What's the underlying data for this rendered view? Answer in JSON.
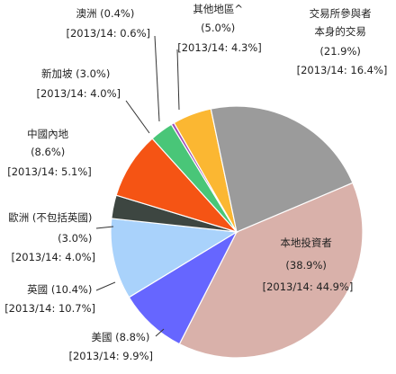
{
  "chart_data": {
    "type": "pie",
    "title": "",
    "series": [
      {
        "name": "本地投資者",
        "value": 38.9,
        "prev_label": "[2013/14: 44.9%]",
        "value_label": "(38.9%)",
        "color": "#d9b1aa"
      },
      {
        "name": "美國",
        "value": 8.8,
        "prev_label": "[2013/14: 9.9%]",
        "value_label": "(8.8%)",
        "color": "#6666ff"
      },
      {
        "name": "英國",
        "value": 10.4,
        "prev_label": "[2013/14: 10.7%]",
        "value_label": "(10.4%)",
        "color": "#a9d2fb"
      },
      {
        "name": "歐洲 (不包括英國)",
        "value": 3.0,
        "prev_label": "[2013/14: 4.0%]",
        "value_label": "(3.0%)",
        "color": "#3d4641"
      },
      {
        "name": "中國內地",
        "value": 8.6,
        "prev_label": "[2013/14: 5.1%]",
        "value_label": "(8.6%)",
        "color": "#f55414"
      },
      {
        "name": "新加坡",
        "value": 3.0,
        "prev_label": "[2013/14: 4.0%]",
        "value_label": "(3.0%)",
        "color": "#49c678"
      },
      {
        "name": "澳洲",
        "value": 0.4,
        "prev_label": "[2013/14: 0.6%]",
        "value_label": "(0.4%)",
        "color": "#a050b8"
      },
      {
        "name": "其他地區^",
        "value": 5.0,
        "prev_label": "[2013/14: 4.3%]",
        "value_label": "(5.0%)",
        "color": "#fbb732"
      },
      {
        "name": "交易所參與者本身的交易",
        "value": 21.9,
        "prev_label": "[2013/14: 16.4%]",
        "value_label": "(21.9%)",
        "color": "#9b9b9b"
      }
    ],
    "labels": {
      "local": {
        "line1": "本地投資者",
        "line2": "(38.9%)",
        "line3": "[2013/14: 44.9%]"
      },
      "us": {
        "line1": "美國 (8.8%)",
        "line2": "[2013/14: 9.9%]"
      },
      "uk": {
        "line1": "英國 (10.4%)",
        "line2": "[2013/14: 10.7%]"
      },
      "europe": {
        "line1": "歐洲 (不包括英國)",
        "line2": "(3.0%)",
        "line3": "[2013/14: 4.0%]"
      },
      "mainland": {
        "line1": "中國內地",
        "line2": "(8.6%)",
        "line3": "[2013/14: 5.1%]"
      },
      "singapore": {
        "line1": "新加坡 (3.0%)",
        "line2": "[2013/14: 4.0%]"
      },
      "australia": {
        "line1": "澳洲 (0.4%)",
        "line2": "[2013/14: 0.6%]"
      },
      "others": {
        "line1": "其他地區^",
        "line2": "(5.0%)",
        "line3": "[2013/14: 4.3%]"
      },
      "exchange": {
        "line1": "交易所參與者",
        "line2": "本身的交易",
        "line3": "(21.9%)",
        "line4": "[2013/14: 16.4%]"
      }
    }
  }
}
